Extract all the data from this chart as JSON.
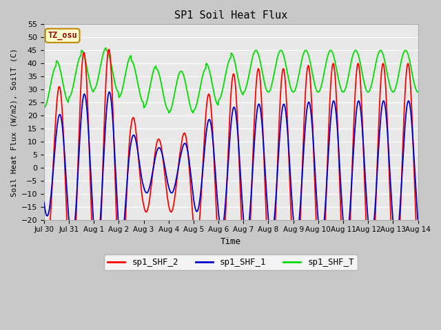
{
  "title": "SP1 Soil Heat Flux",
  "xlabel": "Time",
  "ylabel": "Soil Heat Flux (W/m2), SoilT (C)",
  "ylim": [
    -20,
    55
  ],
  "yticks": [
    -20,
    -15,
    -10,
    -5,
    0,
    5,
    10,
    15,
    20,
    25,
    30,
    35,
    40,
    45,
    50,
    55
  ],
  "fig_bg_color": "#c8c8c8",
  "plot_bg_color": "#e8e8e8",
  "grid_color": "#ffffff",
  "line_colors": {
    "sp1_SHF_2": "#ff0000",
    "sp1_SHF_1": "#0000cc",
    "sp1_SHF_T": "#00dd00"
  },
  "tz_label": "TZ_osu",
  "tz_box_facecolor": "#ffffcc",
  "tz_text_color": "#990000",
  "tz_border_color": "#bb8800",
  "x_tick_labels": [
    "Jul 30",
    "Jul 31",
    "Aug 1",
    "Aug 2",
    "Aug 3",
    "Aug 4",
    "Aug 5",
    "Aug 6",
    "Aug 7",
    "Aug 8",
    "Aug 9",
    "Aug 10",
    "Aug 11",
    "Aug 12",
    "Aug 13",
    "Aug 14"
  ],
  "n_days": 15
}
